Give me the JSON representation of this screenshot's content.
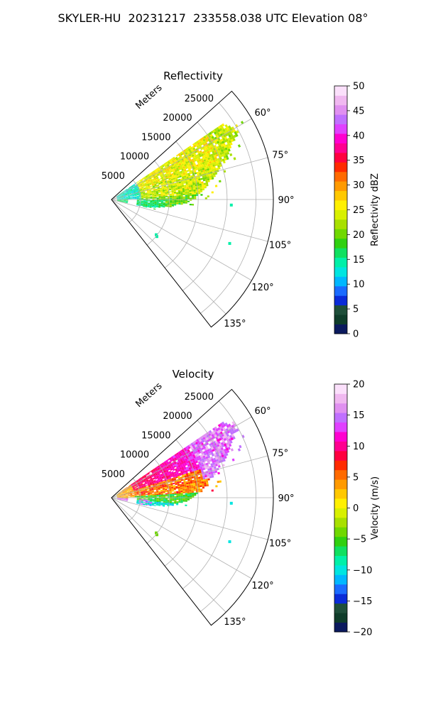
{
  "title": "SKYLER-HU  20231217  233558.038 UTC Elevation 08°",
  "chart_data": [
    {
      "type": "heatmap",
      "projection": "polar-sector",
      "title": "Reflectivity",
      "radial_label": "Meters",
      "radial_ticks": [
        "5000",
        "10000",
        "15000",
        "20000",
        "25000"
      ],
      "radial_tick_values": [
        5000,
        10000,
        15000,
        20000,
        25000
      ],
      "angle_range_deg": [
        48,
        142
      ],
      "angle_ticks": [
        "60°",
        "75°",
        "90°",
        "105°",
        "120°",
        "135°"
      ],
      "angle_tick_values": [
        60,
        75,
        90,
        105,
        120,
        135
      ],
      "grid": true,
      "colorbar": {
        "label": "Reflectivity dBZ",
        "range": [
          0,
          50
        ],
        "ticks": [
          "0",
          "5",
          "10",
          "15",
          "20",
          "25",
          "30",
          "35",
          "40",
          "45",
          "50"
        ],
        "colors": [
          "#0b1a5e",
          "#0f3d2a",
          "#1f4f3a",
          "#0a2bd8",
          "#1a6bff",
          "#00b7ff",
          "#00e5e0",
          "#00f0a8",
          "#10e060",
          "#30d010",
          "#70d800",
          "#a8e000",
          "#d8f000",
          "#fff000",
          "#ffc800",
          "#ff9a00",
          "#ff6a00",
          "#ff2a00",
          "#ff0040",
          "#ff0090",
          "#ff00d0",
          "#e040ff",
          "#c070ff",
          "#e090f0",
          "#f0b8f0",
          "#fbe0fb"
        ]
      },
      "echo": {
        "dominant": "20–27 dBZ (green/yellow-green) over 60°–90°",
        "near_range": "10–14 dBZ (cyan) within 5000 m"
      }
    },
    {
      "type": "heatmap",
      "projection": "polar-sector",
      "title": "Velocity",
      "radial_label": "Meters",
      "radial_ticks": [
        "5000",
        "10000",
        "15000",
        "20000",
        "25000"
      ],
      "radial_tick_values": [
        5000,
        10000,
        15000,
        20000,
        25000
      ],
      "angle_range_deg": [
        48,
        142
      ],
      "angle_ticks": [
        "60°",
        "75°",
        "90°",
        "105°",
        "120°",
        "135°"
      ],
      "angle_tick_values": [
        60,
        75,
        90,
        105,
        120,
        135
      ],
      "grid": true,
      "colorbar": {
        "label": "Velocity (m/s)",
        "range": [
          -20,
          20
        ],
        "ticks": [
          "−20",
          "−15",
          "−10",
          "−5",
          "0",
          "5",
          "10",
          "15",
          "20"
        ],
        "colors": [
          "#0b1a5e",
          "#0f3d2a",
          "#1f4f3a",
          "#0a2bd8",
          "#1a6bff",
          "#00b7ff",
          "#00e5e0",
          "#00f0a8",
          "#10e060",
          "#30d010",
          "#70d800",
          "#a8e000",
          "#d8f000",
          "#fff000",
          "#ffc800",
          "#ff9a00",
          "#ff6a00",
          "#ff2a00",
          "#ff0040",
          "#ff0090",
          "#ff00d0",
          "#e040ff",
          "#c070ff",
          "#e090f0",
          "#f0b8f0",
          "#fbe0fb"
        ]
      },
      "echo": {
        "far_range": "+12 to +18 m/s (red/magenta) beyond 15000 m",
        "mid_range": "+3 to +8 m/s (orange/yellow)",
        "near_range": "−8 to −12 m/s (green/cyan) near 90°–100°"
      }
    }
  ]
}
